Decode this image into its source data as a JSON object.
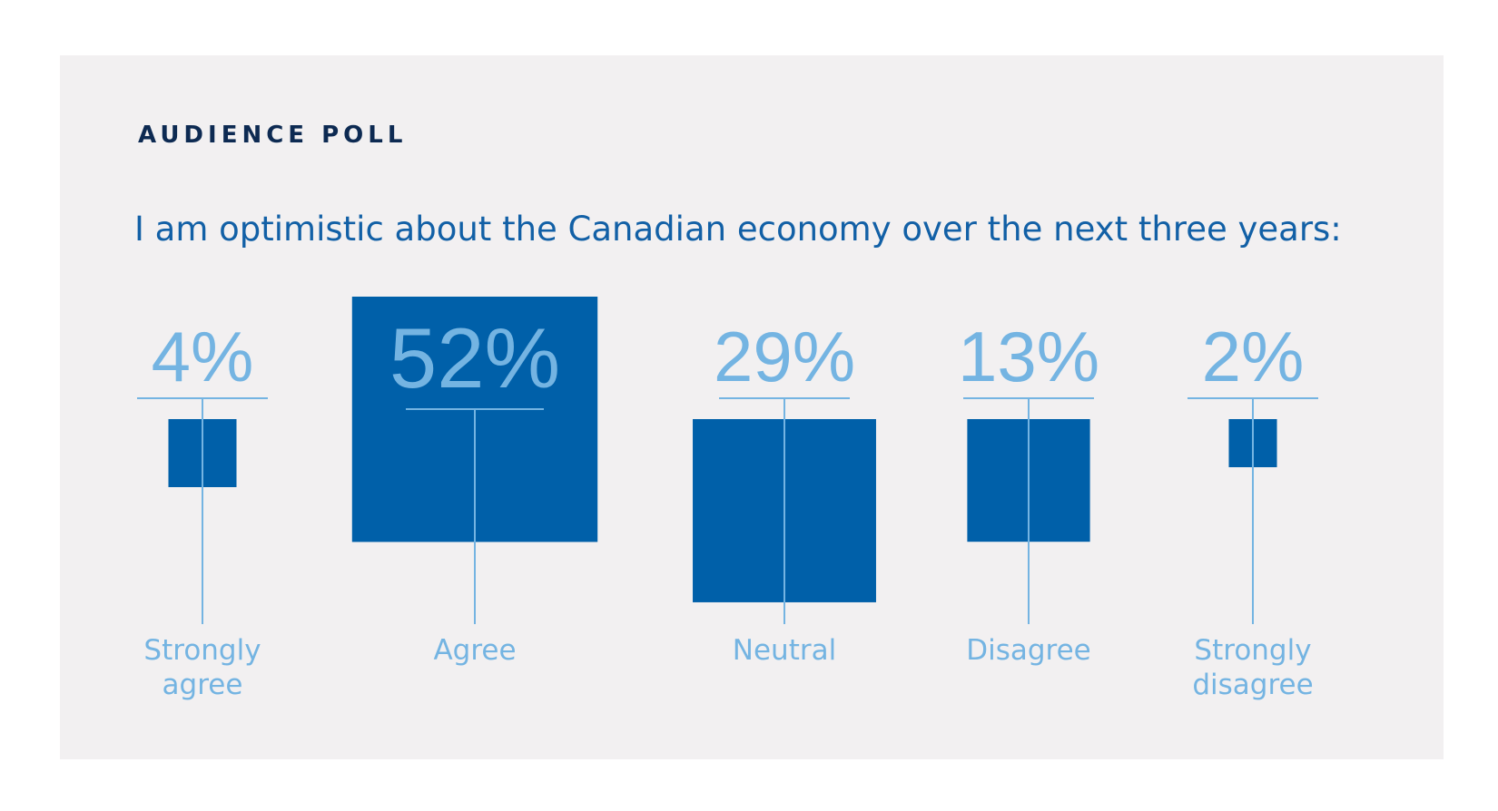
{
  "header": {
    "kicker": "AUDIENCE POLL",
    "question": "I am optimistic about the Canadian economy over the next three years:"
  },
  "colors": {
    "background": "#f2f0f1",
    "square": "#0060a9",
    "accent": "#74b4e2",
    "kicker": "#0d2a52",
    "question": "#1260a6"
  },
  "chart_data": {
    "type": "bar",
    "categories": [
      "Strongly agree",
      "Agree",
      "Neutral",
      "Disagree",
      "Strongly disagree"
    ],
    "category_lines": [
      [
        "Strongly",
        "agree"
      ],
      [
        "Agree"
      ],
      [
        "Neutral"
      ],
      [
        "Disagree"
      ],
      [
        "Strongly",
        "disagree"
      ]
    ],
    "values": [
      4,
      52,
      29,
      13,
      2
    ],
    "value_labels": [
      "4%",
      "52%",
      "29%",
      "13%",
      "2%"
    ],
    "unit": "%",
    "encoding": "square area proportional to value"
  }
}
